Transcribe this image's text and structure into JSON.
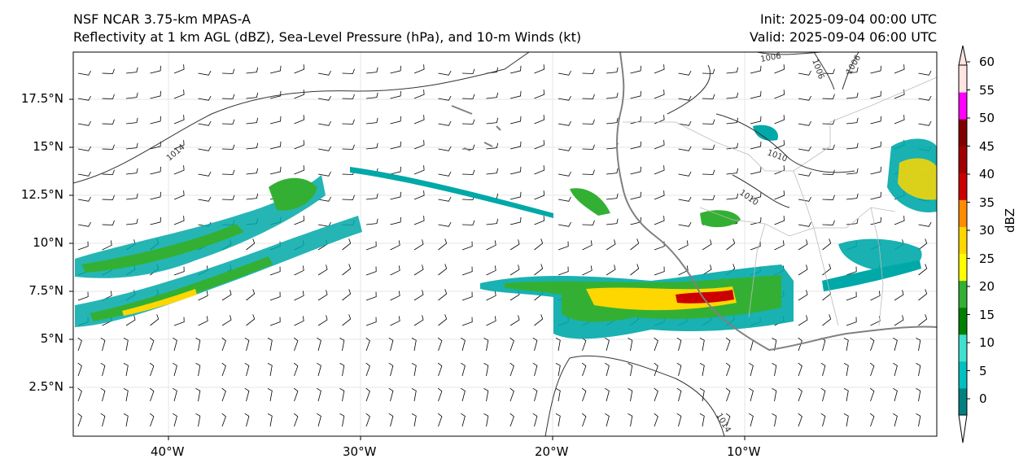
{
  "header": {
    "model_title": "NSF NCAR 3.75-km MPAS-A",
    "field_title": "Reflectivity at 1 km AGL (dBZ), Sea-Level Pressure (hPa), and 10-m Winds (kt)",
    "init_label": "Init: 2025-09-04 00:00 UTC",
    "valid_label": "Valid: 2025-09-04 06:00 UTC"
  },
  "axes": {
    "lon_ticks": [
      "40°W",
      "30°W",
      "20°W",
      "10°W"
    ],
    "lat_ticks": [
      "17.5°N",
      "15°N",
      "12.5°N",
      "10°N",
      "7.5°N",
      "5°N",
      "2.5°N"
    ],
    "lon_range": [
      -45,
      0
    ],
    "lat_range": [
      0,
      20
    ]
  },
  "colorbar": {
    "label": "dBZ",
    "ticks": [
      "60",
      "55",
      "50",
      "45",
      "40",
      "35",
      "30",
      "25",
      "20",
      "15",
      "10",
      "5",
      "0"
    ],
    "colors": [
      "#008080",
      "#00c0c0",
      "#40e0d0",
      "#008000",
      "#33b033",
      "#ffff00",
      "#ffd700",
      "#ff8c00",
      "#cc0000",
      "#a00000",
      "#800000",
      "#ff00ff",
      "#ffe4e1"
    ]
  },
  "isobars": [
    "1014",
    "1010",
    "1010",
    "1006",
    "1006",
    "1006",
    "1014"
  ]
}
